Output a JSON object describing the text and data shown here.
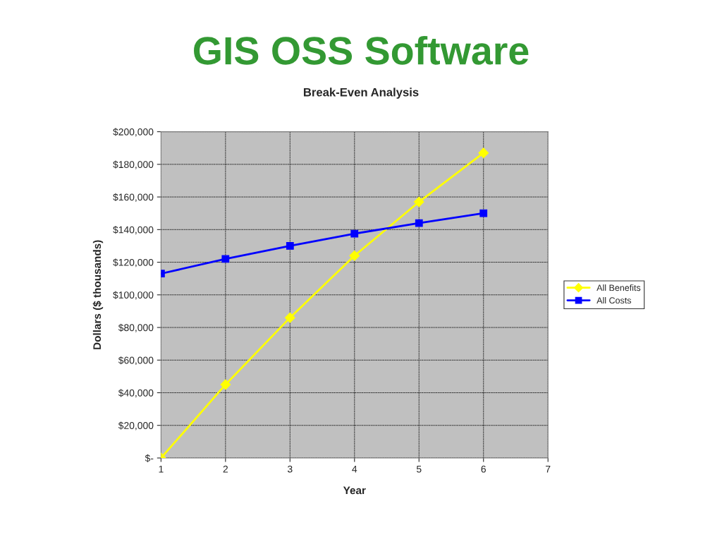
{
  "chart_data": {
    "type": "line",
    "title": "GIS OSS Software",
    "subtitle": "Break-Even Analysis",
    "xlabel": "Year",
    "ylabel": "Dollars ($ thousands)",
    "x": [
      1,
      2,
      3,
      4,
      5,
      6
    ],
    "series": [
      {
        "name": "All Benefits",
        "color": "#ffff00",
        "marker": "diamond",
        "values": [
          0,
          45000,
          86000,
          124000,
          157000,
          187000
        ]
      },
      {
        "name": "All Costs",
        "color": "#0000ff",
        "marker": "square",
        "values": [
          113000,
          122000,
          130000,
          137500,
          144000,
          150000
        ]
      }
    ],
    "xlim": [
      1,
      7
    ],
    "xticks": [
      1,
      2,
      3,
      4,
      5,
      6,
      7
    ],
    "ylim": [
      0,
      200000
    ],
    "yticks": [
      {
        "value": 0,
        "label": "$-"
      },
      {
        "value": 20000,
        "label": "$20,000"
      },
      {
        "value": 40000,
        "label": "$40,000"
      },
      {
        "value": 60000,
        "label": "$60,000"
      },
      {
        "value": 80000,
        "label": "$80,000"
      },
      {
        "value": 100000,
        "label": "$100,000"
      },
      {
        "value": 120000,
        "label": "$120,000"
      },
      {
        "value": 140000,
        "label": "$140,000"
      },
      {
        "value": 160000,
        "label": "$160,000"
      },
      {
        "value": 180000,
        "label": "$180,000"
      },
      {
        "value": 200000,
        "label": "$200,000"
      }
    ],
    "grid": true,
    "legend": "right",
    "line_style": "solid"
  }
}
